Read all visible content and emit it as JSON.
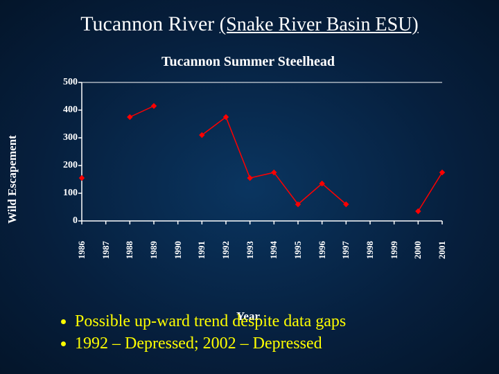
{
  "title_main": "Tucannon River",
  "title_sub": "(Snake River Basin ESU)",
  "chart": {
    "type": "line",
    "title": "Tucannon Summer Steelhead",
    "title_fontsize": 20,
    "ylabel": "Wild Escapement",
    "xlabel": "Year",
    "label_fontsize": 17,
    "tick_fontsize": 14,
    "ylim": [
      0,
      500
    ],
    "yticks": [
      0,
      100,
      200,
      300,
      400,
      500
    ],
    "categories": [
      "1986",
      "1987",
      "1988",
      "1989",
      "1990",
      "1991",
      "1992",
      "1993",
      "1994",
      "1995",
      "1996",
      "1997",
      "1998",
      "1999",
      "2000",
      "2001"
    ],
    "series": [
      {
        "name": "Wild Escapement",
        "values": [
          155,
          null,
          375,
          415,
          null,
          310,
          375,
          155,
          175,
          60,
          135,
          60,
          null,
          null,
          35,
          175
        ],
        "line_color": "#ff0000",
        "marker_color": "#ff0000",
        "marker_style": "diamond",
        "marker_size": 7,
        "line_width": 1.5
      }
    ],
    "axis_color": "#ffffff",
    "tick_color": "#ffffff",
    "background_color": "transparent"
  },
  "bullets": [
    "Possible up-ward trend despite data gaps",
    "1992 – Depressed; 2002 – Depressed"
  ],
  "colors": {
    "slide_bg_center": "#0a3560",
    "slide_bg_edge": "#04152a",
    "title_color": "#ffffff",
    "bullet_color": "#ffff00"
  }
}
